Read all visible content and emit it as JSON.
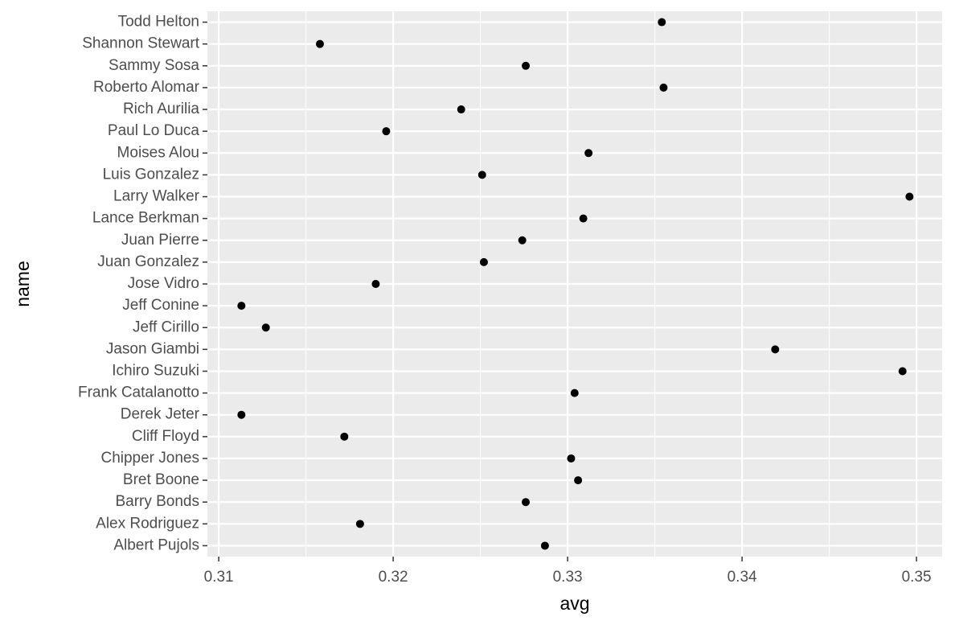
{
  "chart_data": {
    "type": "scatter",
    "x_label": "avg",
    "y_label": "name",
    "categories": [
      "Albert Pujols",
      "Alex Rodriguez",
      "Barry Bonds",
      "Bret Boone",
      "Chipper Jones",
      "Cliff Floyd",
      "Derek Jeter",
      "Frank Catalanotto",
      "Ichiro Suzuki",
      "Jason Giambi",
      "Jeff Cirillo",
      "Jeff Conine",
      "Jose Vidro",
      "Juan Gonzalez",
      "Juan Pierre",
      "Lance Berkman",
      "Larry Walker",
      "Luis Gonzalez",
      "Moises Alou",
      "Paul Lo Duca",
      "Rich Aurilia",
      "Roberto Alomar",
      "Sammy Sosa",
      "Shannon Stewart",
      "Todd Helton"
    ],
    "values": [
      0.3287,
      0.3181,
      0.3276,
      0.3306,
      0.3302,
      0.3172,
      0.3113,
      0.3304,
      0.3492,
      0.3419,
      0.3127,
      0.3113,
      0.319,
      0.3252,
      0.3274,
      0.3309,
      0.3496,
      0.3251,
      0.3312,
      0.3196,
      0.3239,
      0.3355,
      0.3276,
      0.3158,
      0.3354
    ],
    "color": "#000000",
    "xlim": [
      0.30935,
      0.35147
    ],
    "xticks": [
      0.31,
      0.32,
      0.33,
      0.34,
      0.35
    ],
    "grid": true
  }
}
